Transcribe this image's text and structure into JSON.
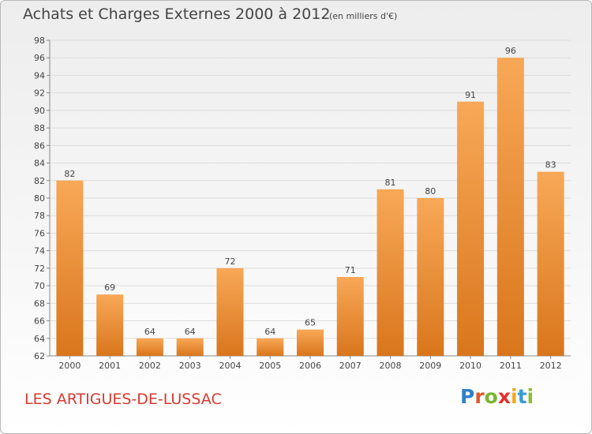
{
  "header": {
    "title": "Achats et Charges Externes 2000 à 2012",
    "unit": "(en milliers d'€)"
  },
  "footer": {
    "place": "LES ARTIGUES-DE-LUSSAC",
    "logo_letters": [
      "P",
      "r",
      "o",
      "x",
      "i",
      "t",
      "i"
    ]
  },
  "colors": {
    "bar_top": "#f8a857",
    "bar_bottom": "#d9761c",
    "grid": "#dcdcdc",
    "text": "#444444",
    "place": "#d63a2f"
  },
  "chart_data": {
    "type": "bar",
    "title": "Achats et Charges Externes 2000 à 2012",
    "subtitle": "(en milliers d'€)",
    "xlabel": "",
    "ylabel": "",
    "categories": [
      "2000",
      "2001",
      "2002",
      "2003",
      "2004",
      "2005",
      "2006",
      "2007",
      "2008",
      "2009",
      "2010",
      "2011",
      "2012"
    ],
    "values": [
      82,
      69,
      64,
      64,
      72,
      64,
      65,
      71,
      81,
      80,
      91,
      96,
      83
    ],
    "ylim": [
      62,
      98
    ],
    "yticks": [
      62,
      64,
      66,
      68,
      70,
      72,
      74,
      76,
      78,
      80,
      82,
      84,
      86,
      88,
      90,
      92,
      94,
      96,
      98
    ],
    "grid": true,
    "data_labels": true
  }
}
